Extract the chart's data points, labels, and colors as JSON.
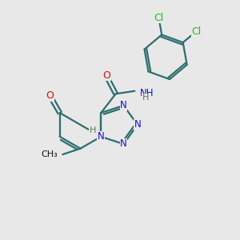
{
  "bg_color": "#e8e8e8",
  "bond_color": "#2d6e6e",
  "bond_width": 1.6,
  "n_color": "#1111cc",
  "o_color": "#cc1111",
  "cl_color": "#22bb22",
  "h_color": "#557755",
  "figsize": [
    3.0,
    3.0
  ],
  "dpi": 100,
  "xlim": [
    -1,
    9
  ],
  "ylim": [
    -1,
    9
  ]
}
